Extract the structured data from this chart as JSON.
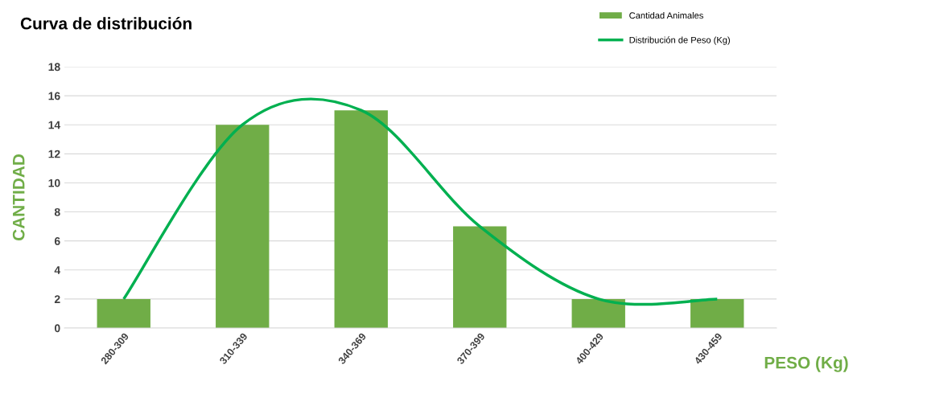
{
  "chart_data": {
    "type": "bar",
    "title": "Curva de distribución",
    "xlabel": "PESO (Kg)",
    "ylabel": "CANTIDAD",
    "categories": [
      "280-309",
      "310-339",
      "340-369",
      "370-399",
      "400-429",
      "430-459"
    ],
    "series": [
      {
        "name": "Cantidad Animales",
        "color": "#70ad47",
        "values": [
          2,
          14,
          15,
          7,
          2,
          2
        ]
      },
      {
        "name": "Distribución de Peso (Kg)",
        "type": "line",
        "color": "#00b050",
        "values": [
          2,
          14,
          15,
          7,
          2,
          2
        ]
      }
    ],
    "ylim": [
      0,
      18
    ],
    "yticks": [
      0,
      2,
      4,
      6,
      8,
      10,
      12,
      14,
      16,
      18
    ],
    "grid": "y",
    "legend": "top right"
  }
}
